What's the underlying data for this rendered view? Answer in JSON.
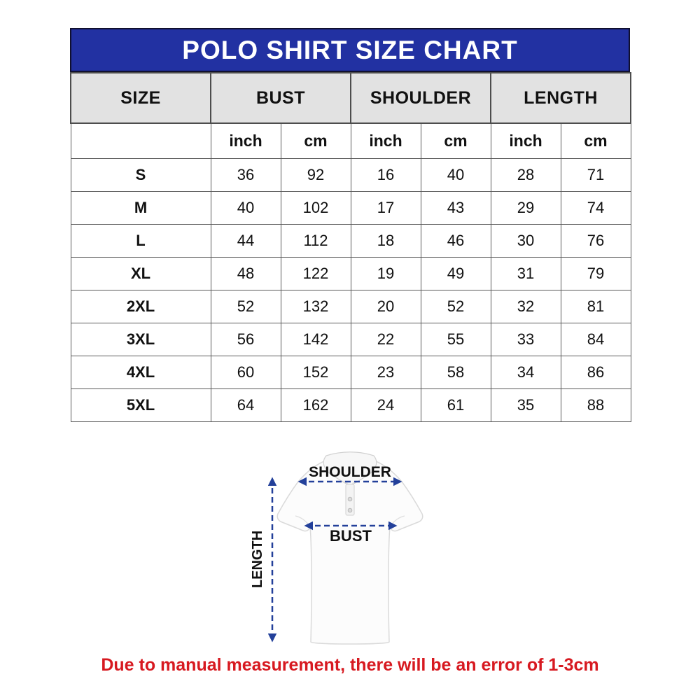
{
  "chart_data": {
    "type": "table",
    "title": "POLO SHIRT SIZE CHART",
    "column_groups": [
      "SIZE",
      "BUST",
      "SHOULDER",
      "LENGTH"
    ],
    "units": [
      "inch",
      "cm",
      "inch",
      "cm",
      "inch",
      "cm"
    ],
    "columns": [
      "SIZE",
      "BUST inch",
      "BUST cm",
      "SHOULDER inch",
      "SHOULDER cm",
      "LENGTH inch",
      "LENGTH cm"
    ],
    "rows": [
      [
        "S",
        36,
        92,
        16,
        40,
        28,
        71
      ],
      [
        "M",
        40,
        102,
        17,
        43,
        29,
        74
      ],
      [
        "L",
        44,
        112,
        18,
        46,
        30,
        76
      ],
      [
        "XL",
        48,
        122,
        19,
        49,
        31,
        79
      ],
      [
        "2XL",
        52,
        132,
        20,
        52,
        32,
        81
      ],
      [
        "3XL",
        56,
        142,
        22,
        55,
        33,
        84
      ],
      [
        "4XL",
        60,
        152,
        23,
        58,
        34,
        86
      ],
      [
        "5XL",
        64,
        162,
        24,
        61,
        35,
        88
      ]
    ],
    "layout": {
      "grid": true,
      "header_position": "top"
    }
  },
  "diagram": {
    "shoulder_label": "SHOULDER",
    "bust_label": "BUST",
    "length_label": "LENGTH"
  },
  "footer": {
    "note": "Due to manual measurement, there will be an error of 1-3cm"
  },
  "colors": {
    "header_bg": "#2231a2",
    "header_text": "#ffffff",
    "subheader_bg": "#e2e2e2",
    "arrow_blue": "#23409a",
    "note_red": "#d71920"
  }
}
